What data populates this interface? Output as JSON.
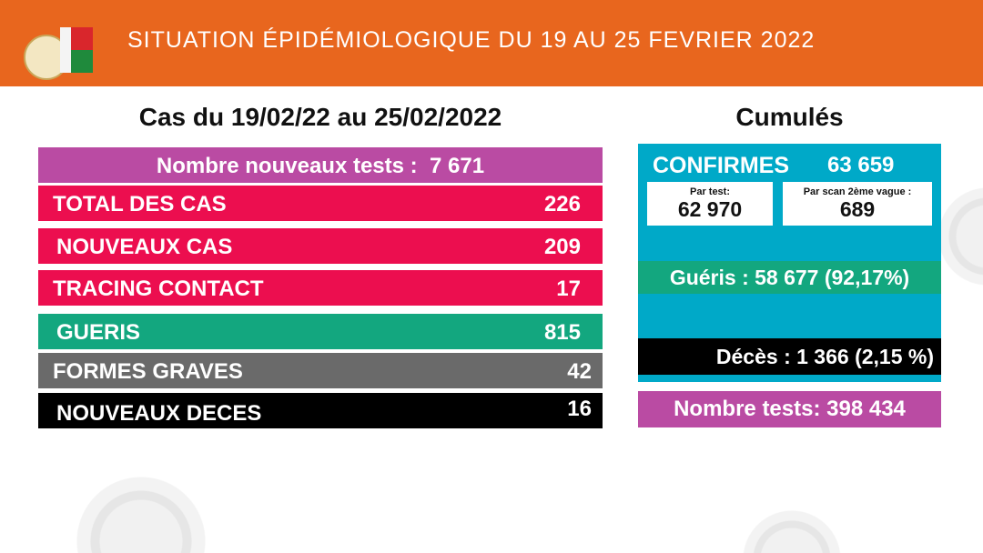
{
  "header": {
    "title": "SITUATION ÉPIDÉMIOLOGIQUE DU 19 AU 25 FEVRIER 2022"
  },
  "colors": {
    "orange": "#E8661E",
    "purple": "#BA4BA3",
    "red": "#EC0E4F",
    "green": "#13A77F",
    "gray": "#6A6A6A",
    "black": "#000000",
    "cyan": "#00A9C8"
  },
  "weekly": {
    "title": "Cas du 19/02/22 au 25/02/2022",
    "tests_label": "Nombre nouveaux tests :",
    "tests_value": "7 671",
    "rows": [
      {
        "label": "TOTAL DES CAS",
        "value": "226"
      },
      {
        "label": "NOUVEAUX CAS",
        "value": "209"
      },
      {
        "label": "TRACING CONTACT",
        "value": "17"
      },
      {
        "label": "GUERIS",
        "value": "815"
      },
      {
        "label": "FORMES GRAVES",
        "value": "42"
      },
      {
        "label": "NOUVEAUX DECES",
        "value": "16"
      }
    ]
  },
  "cumulative": {
    "title": "Cumulés",
    "confirmed_label": "CONFIRMES",
    "confirmed_value": "63 659",
    "par_test_label": "Par test:",
    "par_test_value": "62 970",
    "par_scan_label": "Par scan 2ème vague :",
    "par_scan_value": "689",
    "gueris": "Guéris : 58 677 (92,17%)",
    "deces": "Décès :  1 366 (2,15 %)",
    "tests": "Nombre tests:  398 434"
  }
}
